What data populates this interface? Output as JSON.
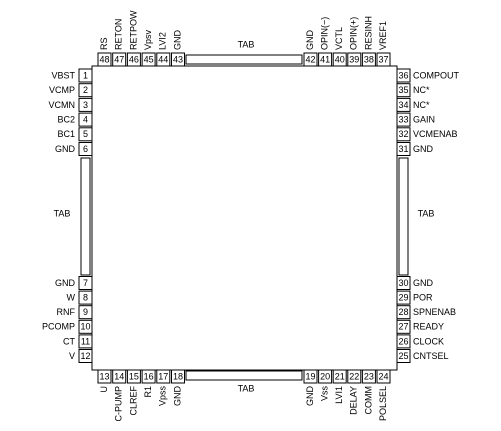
{
  "sides": {
    "left": {
      "pins": [
        {
          "number": "1",
          "label": "VBST"
        },
        {
          "number": "2",
          "label": "VCMP"
        },
        {
          "number": "3",
          "label": "VCMN"
        },
        {
          "number": "4",
          "label": "BC2"
        },
        {
          "number": "5",
          "label": "BC1"
        },
        {
          "number": "6",
          "label": "GND"
        },
        {
          "number": "7",
          "label": "GND"
        },
        {
          "number": "8",
          "label": "W"
        },
        {
          "number": "9",
          "label": "RNF"
        },
        {
          "number": "10",
          "label": "PCOMP"
        },
        {
          "number": "11",
          "label": "CT"
        },
        {
          "number": "12",
          "label": "V"
        }
      ],
      "tab": "TAB"
    },
    "right": {
      "pins": [
        {
          "number": "36",
          "label": "COMPOUT"
        },
        {
          "number": "35",
          "label": "NC*"
        },
        {
          "number": "34",
          "label": "NC*"
        },
        {
          "number": "33",
          "label": "GAIN"
        },
        {
          "number": "32",
          "label": "VCMENAB"
        },
        {
          "number": "31",
          "label": "GND"
        },
        {
          "number": "30",
          "label": "GND"
        },
        {
          "number": "29",
          "label": "POR"
        },
        {
          "number": "28",
          "label": "SPNENAB"
        },
        {
          "number": "27",
          "label": "READY"
        },
        {
          "number": "26",
          "label": "CLOCK"
        },
        {
          "number": "25",
          "label": "CNTSEL"
        }
      ],
      "tab": "TAB"
    },
    "top": {
      "pins": [
        {
          "number": "48",
          "label": "RS"
        },
        {
          "number": "47",
          "label": "RETON"
        },
        {
          "number": "46",
          "label": "RETPOW"
        },
        {
          "number": "45",
          "label": "Vpsv"
        },
        {
          "number": "44",
          "label": "LVI2"
        },
        {
          "number": "43",
          "label": "GND"
        },
        {
          "number": "42",
          "label": "GND"
        },
        {
          "number": "41",
          "label": "OPIN(−)"
        },
        {
          "number": "40",
          "label": "VCTL"
        },
        {
          "number": "39",
          "label": "OPIN(+)"
        },
        {
          "number": "38",
          "label": "RESINH"
        },
        {
          "number": "37",
          "label": "VREF1"
        }
      ],
      "tab": "TAB"
    },
    "bottom": {
      "pins": [
        {
          "number": "13",
          "label": "U"
        },
        {
          "number": "14",
          "label": "C-PUMP"
        },
        {
          "number": "15",
          "label": "CLREF"
        },
        {
          "number": "16",
          "label": "R1"
        },
        {
          "number": "17",
          "label": "Vpss"
        },
        {
          "number": "18",
          "label": "GND"
        },
        {
          "number": "19",
          "label": "GND"
        },
        {
          "number": "20",
          "label": "Vss"
        },
        {
          "number": "21",
          "label": "LVI1"
        },
        {
          "number": "22",
          "label": "DELAY"
        },
        {
          "number": "23",
          "label": "COMM"
        },
        {
          "number": "24",
          "label": "POLSEL"
        }
      ],
      "tab": "TAB"
    }
  }
}
